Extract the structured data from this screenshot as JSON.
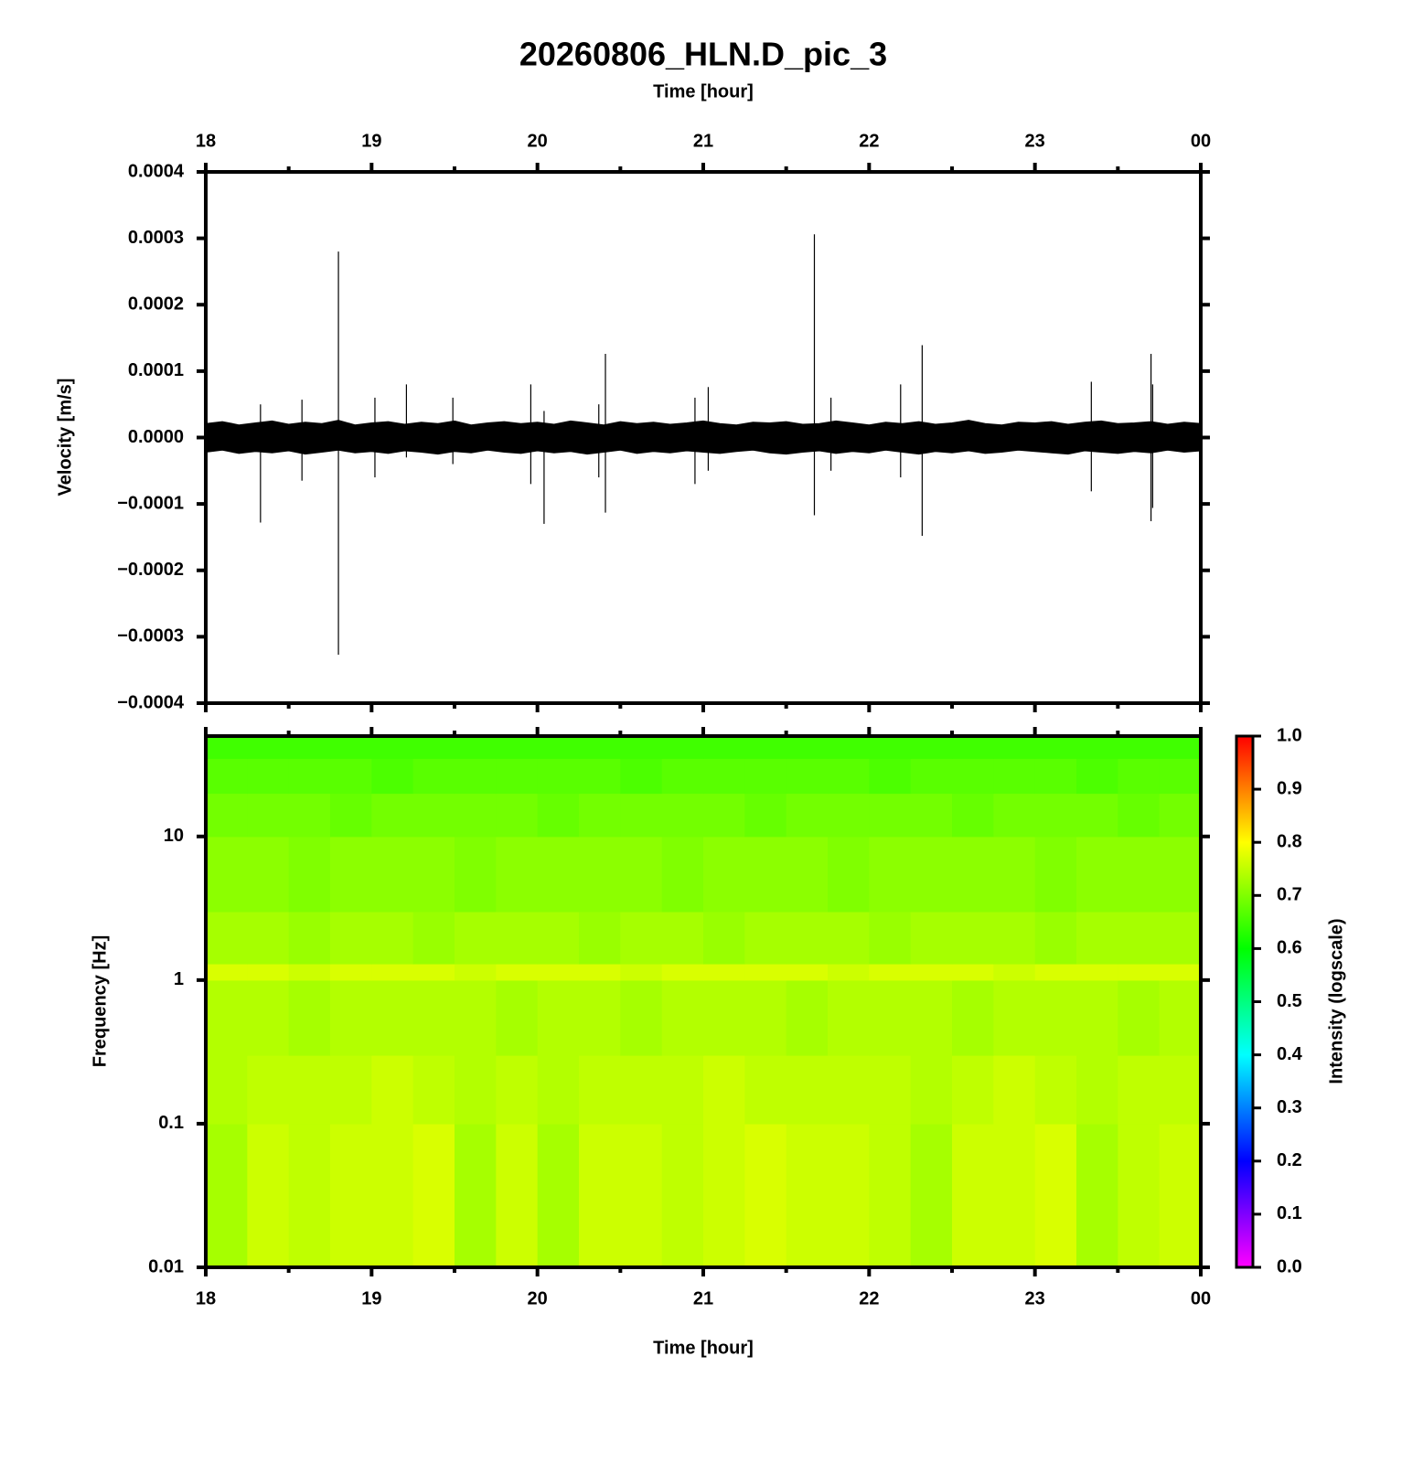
{
  "chart_data": [
    {
      "type": "line",
      "title": "20260806_HLN.D_pic_3",
      "xlabel": "Time [hour]",
      "ylabel": "Velocity [m/s]",
      "xlim": [
        18,
        24
      ],
      "xticks": [
        18,
        19,
        20,
        21,
        22,
        23,
        {
          "value": 24,
          "label": "00"
        }
      ],
      "xminorticks": [
        18.5,
        19.5,
        20.5,
        21.5,
        22.5,
        23.5
      ],
      "ylim": [
        -0.0004,
        0.0004
      ],
      "yticks": [
        {
          "value": -0.0004,
          "label": "−0.0004"
        },
        {
          "value": -0.0003,
          "label": "−0.0003"
        },
        {
          "value": -0.0002,
          "label": "−0.0002"
        },
        {
          "value": -0.0001,
          "label": "−0.0001"
        },
        {
          "value": 0,
          "label": "0.0000"
        },
        0.0001,
        0.0002,
        0.0003,
        0.0004
      ],
      "x": [
        18,
        18.1,
        18.2,
        18.3,
        18.4,
        18.5,
        18.6,
        18.7,
        18.8,
        18.9,
        19,
        19.1,
        19.2,
        19.3,
        19.4,
        19.5,
        19.6,
        19.7,
        19.8,
        19.9,
        20,
        20.1,
        20.2,
        20.3,
        20.4,
        20.5,
        20.6,
        20.7,
        20.8,
        20.9,
        21,
        21.1,
        21.2,
        21.3,
        21.4,
        21.5,
        21.6,
        21.7,
        21.8,
        21.9,
        22,
        22.1,
        22.2,
        22.3,
        22.4,
        22.5,
        22.6,
        22.7,
        22.8,
        22.9,
        23,
        23.1,
        23.2,
        23.3,
        23.4,
        23.5,
        23.6,
        23.7,
        23.8,
        23.9,
        24
      ],
      "series": [
        {
          "color": "#000000",
          "values": [
            2.1e-05,
            2.4e-05,
            1.9e-05,
            2.2e-05,
            2.5e-05,
            2e-05,
            2.3e-05,
            2.1e-05,
            2.6e-05,
            1.9e-05,
            2.2e-05,
            2.4e-05,
            2e-05,
            2.3e-05,
            2.1e-05,
            2.5e-05,
            1.9e-05,
            2.2e-05,
            2.4e-05,
            2.1e-05,
            2.3e-05,
            2e-05,
            2.5e-05,
            2.2e-05,
            1.9e-05,
            2.4e-05,
            2.1e-05,
            2.3e-05,
            2e-05,
            2.2e-05,
            2.5e-05,
            2.1e-05,
            1.9e-05,
            2.3e-05,
            2.2e-05,
            2.4e-05,
            2e-05,
            2.1e-05,
            2.5e-05,
            2.2e-05,
            1.9e-05,
            2.3e-05,
            2.1e-05,
            2.4e-05,
            2e-05,
            2.2e-05,
            2.6e-05,
            2.1e-05,
            1.9e-05,
            2.3e-05,
            2.2e-05,
            2.4e-05,
            2e-05,
            2.3e-05,
            2.5e-05,
            2.1e-05,
            2.2e-05,
            2.4e-05,
            2e-05,
            2.3e-05,
            2.1e-05
          ]
        },
        {
          "color": "#000000",
          "values": [
            -2.2e-05,
            -1.9e-05,
            -2.4e-05,
            -2.1e-05,
            -2.3e-05,
            -2e-05,
            -2.5e-05,
            -2.2e-05,
            -1.9e-05,
            -2.3e-05,
            -2.1e-05,
            -2.4e-05,
            -2e-05,
            -2.2e-05,
            -2.5e-05,
            -2.1e-05,
            -2.3e-05,
            -1.9e-05,
            -2.2e-05,
            -2.4e-05,
            -2e-05,
            -2.3e-05,
            -2.1e-05,
            -2.5e-05,
            -2.2e-05,
            -1.9e-05,
            -2.4e-05,
            -2.1e-05,
            -2.3e-05,
            -2e-05,
            -2.2e-05,
            -2.4e-05,
            -2.1e-05,
            -1.9e-05,
            -2.3e-05,
            -2.5e-05,
            -2.2e-05,
            -2e-05,
            -2.4e-05,
            -2.1e-05,
            -2.3e-05,
            -1.9e-05,
            -2.2e-05,
            -2.5e-05,
            -2.1e-05,
            -2.3e-05,
            -2e-05,
            -2.4e-05,
            -2.2e-05,
            -1.9e-05,
            -2.1e-05,
            -2.3e-05,
            -2.5e-05,
            -2e-05,
            -2.2e-05,
            -2.4e-05,
            -2.1e-05,
            -2.3e-05,
            -1.9e-05,
            -2.2e-05,
            -2e-05
          ]
        }
      ],
      "spikes": {
        "color": "#000000",
        "x": [
          18.33,
          18.58,
          18.8,
          19.02,
          19.21,
          19.49,
          19.96,
          20.04,
          20.37,
          20.41,
          20.95,
          21.03,
          21.67,
          21.77,
          22.19,
          22.32,
          23.34,
          23.7,
          23.71
        ],
        "max": [
          5e-05,
          5.7e-05,
          0.00028,
          6e-05,
          8e-05,
          6e-05,
          8e-05,
          4e-05,
          5e-05,
          0.000126,
          6e-05,
          7.6e-05,
          0.000306,
          6e-05,
          8e-05,
          0.000139,
          8.4e-05,
          0.000126,
          8e-05
        ],
        "min": [
          -0.000128,
          -6.5e-05,
          -0.000327,
          -6e-05,
          -3e-05,
          -4e-05,
          -7e-05,
          -0.00013,
          -6e-05,
          -0.000113,
          -7e-05,
          -5e-05,
          -0.000117,
          -5e-05,
          -6e-05,
          -0.000148,
          -8.1e-05,
          -0.000126,
          -0.000106
        ]
      }
    },
    {
      "type": "heatmap",
      "xlabel": "Time [hour]",
      "ylabel": "Frequency [Hz]",
      "ylog": true,
      "xlim": [
        18,
        24
      ],
      "xticks": [
        18,
        19,
        20,
        21,
        22,
        23,
        {
          "value": 24,
          "label": "00"
        }
      ],
      "xminorticks": [
        18.5,
        19.5,
        20.5,
        21.5,
        22.5,
        23.5
      ],
      "ylim": [
        0.01,
        50
      ],
      "yticks": [
        0.01,
        0.1,
        1,
        10
      ],
      "x_edges": [
        18,
        18.25,
        18.5,
        18.75,
        19,
        19.25,
        19.5,
        19.75,
        20,
        20.25,
        20.5,
        20.75,
        21,
        21.25,
        21.5,
        21.75,
        22,
        22.25,
        22.5,
        22.75,
        23,
        23.25,
        23.5,
        23.75,
        24
      ],
      "y_edges": [
        0.01,
        0.1,
        0.3,
        1,
        1.3,
        3,
        10,
        20,
        35,
        50
      ],
      "z": [
        [
          0.73,
          0.76,
          0.75,
          0.76,
          0.76,
          0.77,
          0.73,
          0.76,
          0.73,
          0.76,
          0.76,
          0.75,
          0.76,
          0.77,
          0.76,
          0.76,
          0.75,
          0.73,
          0.76,
          0.76,
          0.77,
          0.73,
          0.75,
          0.76
        ],
        [
          0.74,
          0.75,
          0.75,
          0.75,
          0.76,
          0.75,
          0.74,
          0.75,
          0.74,
          0.75,
          0.75,
          0.75,
          0.76,
          0.75,
          0.75,
          0.75,
          0.75,
          0.74,
          0.75,
          0.76,
          0.75,
          0.74,
          0.75,
          0.75
        ],
        [
          0.74,
          0.74,
          0.73,
          0.74,
          0.74,
          0.74,
          0.74,
          0.73,
          0.74,
          0.74,
          0.73,
          0.74,
          0.74,
          0.74,
          0.73,
          0.74,
          0.74,
          0.74,
          0.73,
          0.74,
          0.74,
          0.74,
          0.73,
          0.74
        ],
        [
          0.77,
          0.77,
          0.76,
          0.77,
          0.77,
          0.77,
          0.76,
          0.77,
          0.77,
          0.77,
          0.76,
          0.77,
          0.77,
          0.77,
          0.77,
          0.76,
          0.77,
          0.77,
          0.77,
          0.76,
          0.77,
          0.77,
          0.77,
          0.77
        ],
        [
          0.73,
          0.73,
          0.72,
          0.73,
          0.73,
          0.72,
          0.73,
          0.73,
          0.73,
          0.72,
          0.73,
          0.73,
          0.72,
          0.73,
          0.73,
          0.73,
          0.72,
          0.73,
          0.73,
          0.73,
          0.72,
          0.73,
          0.73,
          0.73
        ],
        [
          0.71,
          0.71,
          0.7,
          0.71,
          0.71,
          0.71,
          0.7,
          0.71,
          0.71,
          0.71,
          0.71,
          0.7,
          0.71,
          0.71,
          0.71,
          0.7,
          0.71,
          0.71,
          0.71,
          0.71,
          0.7,
          0.71,
          0.71,
          0.71
        ],
        [
          0.69,
          0.69,
          0.69,
          0.68,
          0.69,
          0.69,
          0.69,
          0.69,
          0.68,
          0.69,
          0.69,
          0.69,
          0.69,
          0.68,
          0.69,
          0.69,
          0.69,
          0.69,
          0.68,
          0.69,
          0.69,
          0.69,
          0.68,
          0.69
        ],
        [
          0.67,
          0.67,
          0.67,
          0.67,
          0.66,
          0.67,
          0.67,
          0.67,
          0.67,
          0.67,
          0.66,
          0.67,
          0.67,
          0.67,
          0.67,
          0.67,
          0.66,
          0.67,
          0.67,
          0.67,
          0.67,
          0.66,
          0.67,
          0.67
        ],
        [
          0.65,
          0.65,
          0.65,
          0.65,
          0.65,
          0.65,
          0.65,
          0.65,
          0.65,
          0.65,
          0.65,
          0.65,
          0.65,
          0.65,
          0.65,
          0.65,
          0.65,
          0.65,
          0.65,
          0.65,
          0.65,
          0.65,
          0.65,
          0.65
        ]
      ],
      "colorbar_label": "Intensity (logscale)",
      "clim": [
        0,
        1
      ],
      "cticks": [
        {
          "value": 0,
          "label": "0.0"
        },
        0.1,
        0.2,
        0.3,
        0.4,
        0.5,
        0.6,
        0.7,
        0.8,
        0.9,
        {
          "value": 1,
          "label": "1.0"
        }
      ]
    }
  ]
}
